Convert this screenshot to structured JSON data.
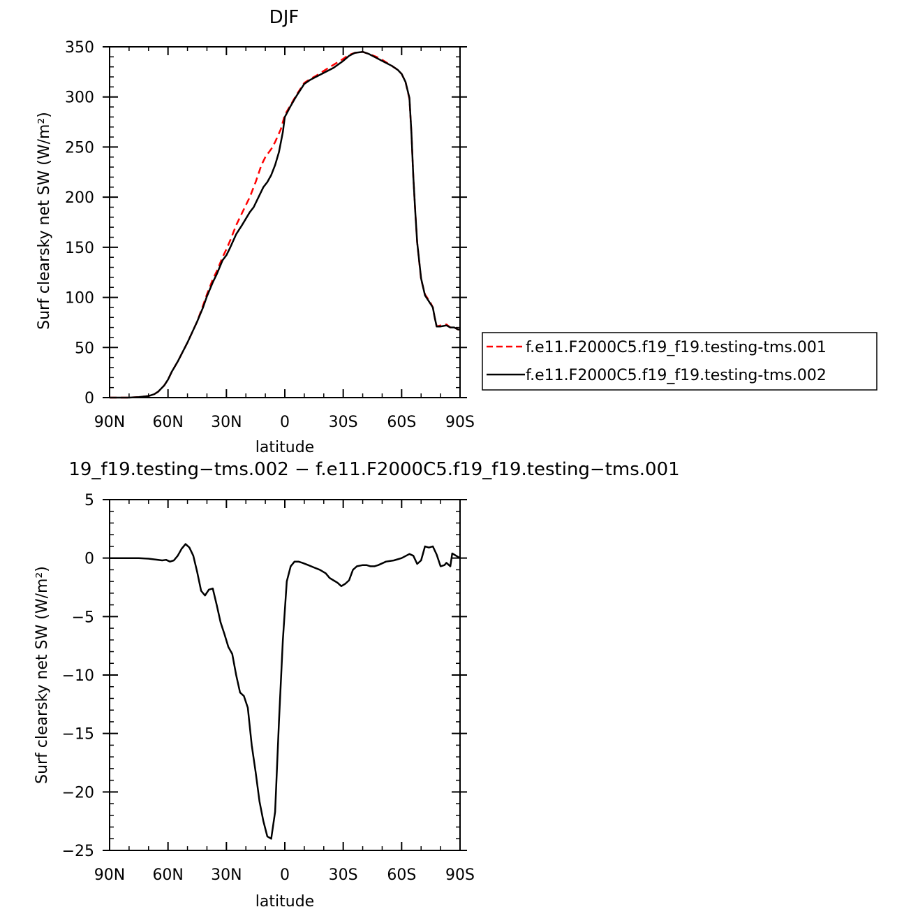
{
  "chart_data": [
    {
      "type": "line",
      "title": "DJF",
      "xlabel": "latitude",
      "ylabel": "Surf clearsky net SW (W/m²)",
      "xlim": [
        90,
        -90
      ],
      "ylim": [
        0,
        350
      ],
      "x_ticks": [
        90,
        60,
        30,
        0,
        -30,
        -60,
        -90
      ],
      "x_tick_labels": [
        "90N",
        "60N",
        "30N",
        "0",
        "30S",
        "60S",
        "90S"
      ],
      "y_ticks": [
        0,
        50,
        100,
        150,
        200,
        250,
        300,
        350
      ],
      "y_tick_labels": [
        "0",
        "50",
        "100",
        "150",
        "200",
        "250",
        "300",
        "350"
      ],
      "legend_position": "right",
      "series": [
        {
          "name": "f.e11.F2000C5.f19_f19.testing-tms.001",
          "color": "#ff0000",
          "dash": "dashed",
          "points": [
            [
              90,
              0
            ],
            [
              80,
              0
            ],
            [
              75,
              0.5
            ],
            [
              70,
              1.5
            ],
            [
              67,
              3.5
            ],
            [
              65,
              6
            ],
            [
              62,
              12
            ],
            [
              60,
              18
            ],
            [
              58,
              26
            ],
            [
              55,
              36
            ],
            [
              50,
              55
            ],
            [
              45,
              76
            ],
            [
              42,
              92
            ],
            [
              40,
              103
            ],
            [
              37,
              118
            ],
            [
              35,
              126
            ],
            [
              32,
              140
            ],
            [
              30,
              148
            ],
            [
              28,
              157
            ],
            [
              25,
              172
            ],
            [
              22,
              184
            ],
            [
              18,
              200
            ],
            [
              15,
              215
            ],
            [
              12,
              232
            ],
            [
              10,
              240
            ],
            [
              7,
              248
            ],
            [
              5,
              255
            ],
            [
              2,
              268
            ],
            [
              0,
              282
            ],
            [
              -3,
              292
            ],
            [
              -6,
              302
            ],
            [
              -10,
              314
            ],
            [
              -13,
              318
            ],
            [
              -16,
              321
            ],
            [
              -20,
              326
            ],
            [
              -25,
              332
            ],
            [
              -30,
              338
            ],
            [
              -33,
              342
            ],
            [
              -36,
              344
            ],
            [
              -40,
              345
            ],
            [
              -43,
              343
            ],
            [
              -47,
              340
            ],
            [
              -50,
              337
            ],
            [
              -55,
              331
            ],
            [
              -58,
              327
            ],
            [
              -60,
              323
            ],
            [
              -62,
              315
            ],
            [
              -64,
              298
            ],
            [
              -65,
              265
            ],
            [
              -66,
              220
            ],
            [
              -67,
              185
            ],
            [
              -68,
              155
            ],
            [
              -70,
              118
            ],
            [
              -72,
              103
            ],
            [
              -75,
              94
            ],
            [
              -76,
              90
            ],
            [
              -77,
              80
            ],
            [
              -78,
              71
            ],
            [
              -80,
              72
            ],
            [
              -83,
              73
            ],
            [
              -85,
              70
            ],
            [
              -87,
              70
            ],
            [
              -89,
              68
            ],
            [
              -90,
              68
            ]
          ]
        },
        {
          "name": "f.e11.F2000C5.f19_f19.testing-tms.002",
          "color": "#000000",
          "dash": "solid",
          "points": [
            [
              90,
              0
            ],
            [
              80,
              0
            ],
            [
              75,
              0.5
            ],
            [
              70,
              1.5
            ],
            [
              67,
              3.5
            ],
            [
              65,
              6
            ],
            [
              62,
              12
            ],
            [
              60,
              18
            ],
            [
              58,
              26
            ],
            [
              55,
              36
            ],
            [
              50,
              55
            ],
            [
              45,
              76
            ],
            [
              42,
              90
            ],
            [
              40,
              101
            ],
            [
              37,
              115
            ],
            [
              35,
              123
            ],
            [
              32,
              137
            ],
            [
              30,
              142
            ],
            [
              28,
              150
            ],
            [
              25,
              163
            ],
            [
              22,
              172
            ],
            [
              18,
              185
            ],
            [
              16,
              190
            ],
            [
              13,
              202
            ],
            [
              11,
              210
            ],
            [
              9,
              215
            ],
            [
              7,
              222
            ],
            [
              5,
              232
            ],
            [
              3,
              245
            ],
            [
              1,
              265
            ],
            [
              0,
              280
            ],
            [
              -3,
              291
            ],
            [
              -6,
              301
            ],
            [
              -10,
              313
            ],
            [
              -13,
              317
            ],
            [
              -16,
              320
            ],
            [
              -20,
              324
            ],
            [
              -25,
              329
            ],
            [
              -30,
              336
            ],
            [
              -33,
              341
            ],
            [
              -36,
              344
            ],
            [
              -40,
              345
            ],
            [
              -43,
              343
            ],
            [
              -47,
              339
            ],
            [
              -50,
              336
            ],
            [
              -55,
              331
            ],
            [
              -58,
              327
            ],
            [
              -60,
              323
            ],
            [
              -62,
              315
            ],
            [
              -64,
              299
            ],
            [
              -65,
              265
            ],
            [
              -66,
              220
            ],
            [
              -67,
              185
            ],
            [
              -68,
              155
            ],
            [
              -70,
              119
            ],
            [
              -72,
              102
            ],
            [
              -75,
              93
            ],
            [
              -76,
              90
            ],
            [
              -77,
              80
            ],
            [
              -78,
              71
            ],
            [
              -80,
              71
            ],
            [
              -83,
              72
            ],
            [
              -85,
              70
            ],
            [
              -87,
              70
            ],
            [
              -89,
              68
            ],
            [
              -90,
              68
            ]
          ]
        }
      ]
    },
    {
      "type": "line",
      "title": "19_f19.testing−tms.002 − f.e11.F2000C5.f19_f19.testing−tms.001",
      "xlabel": "latitude",
      "ylabel": "Surf clearsky net SW (W/m²)",
      "xlim": [
        90,
        -90
      ],
      "ylim": [
        -25,
        5
      ],
      "x_ticks": [
        90,
        60,
        30,
        0,
        -30,
        -60,
        -90
      ],
      "x_tick_labels": [
        "90N",
        "60N",
        "30N",
        "0",
        "30S",
        "60S",
        "90S"
      ],
      "y_ticks": [
        5,
        0,
        -5,
        -10,
        -15,
        -20,
        -25
      ],
      "y_tick_labels": [
        "5",
        "0",
        "−5",
        "−10",
        "−15",
        "−20",
        "−25"
      ],
      "series": [
        {
          "color": "#000000",
          "dash": "solid",
          "points": [
            [
              90,
              0
            ],
            [
              75,
              0
            ],
            [
              70,
              -0.05
            ],
            [
              65,
              -0.15
            ],
            [
              63,
              -0.2
            ],
            [
              61,
              -0.15
            ],
            [
              59,
              -0.3
            ],
            [
              57,
              -0.2
            ],
            [
              55,
              0.2
            ],
            [
              53,
              0.8
            ],
            [
              51,
              1.2
            ],
            [
              49,
              0.9
            ],
            [
              47,
              0.2
            ],
            [
              45,
              -1.2
            ],
            [
              43,
              -2.8
            ],
            [
              41,
              -3.2
            ],
            [
              39,
              -2.7
            ],
            [
              37,
              -2.6
            ],
            [
              35,
              -4
            ],
            [
              33,
              -5.5
            ],
            [
              31,
              -6.5
            ],
            [
              29,
              -7.6
            ],
            [
              27,
              -8.2
            ],
            [
              25,
              -10
            ],
            [
              23,
              -11.5
            ],
            [
              21,
              -11.8
            ],
            [
              19,
              -12.8
            ],
            [
              17,
              -16
            ],
            [
              15,
              -18.3
            ],
            [
              13,
              -20.8
            ],
            [
              11,
              -22.5
            ],
            [
              9,
              -23.8
            ],
            [
              7,
              -24
            ],
            [
              5,
              -21.7
            ],
            [
              3,
              -14
            ],
            [
              1,
              -7
            ],
            [
              -1,
              -2
            ],
            [
              -3,
              -0.7
            ],
            [
              -5,
              -0.3
            ],
            [
              -7,
              -0.3
            ],
            [
              -9,
              -0.4
            ],
            [
              -12,
              -0.6
            ],
            [
              -15,
              -0.8
            ],
            [
              -18,
              -1
            ],
            [
              -21,
              -1.3
            ],
            [
              -23,
              -1.7
            ],
            [
              -25,
              -1.9
            ],
            [
              -27,
              -2.1
            ],
            [
              -29,
              -2.4
            ],
            [
              -31,
              -2.2
            ],
            [
              -33,
              -1.9
            ],
            [
              -35,
              -1
            ],
            [
              -37,
              -0.7
            ],
            [
              -40,
              -0.6
            ],
            [
              -42,
              -0.6
            ],
            [
              -44,
              -0.7
            ],
            [
              -46,
              -0.7
            ],
            [
              -48,
              -0.6
            ],
            [
              -50,
              -0.45
            ],
            [
              -52,
              -0.3
            ],
            [
              -56,
              -0.2
            ],
            [
              -60,
              0
            ],
            [
              -64,
              0.35
            ],
            [
              -66,
              0.2
            ],
            [
              -68,
              -0.5
            ],
            [
              -70,
              -0.2
            ],
            [
              -72,
              1
            ],
            [
              -74,
              0.9
            ],
            [
              -76,
              1
            ],
            [
              -78,
              0.3
            ],
            [
              -80,
              -0.7
            ],
            [
              -82,
              -0.6
            ],
            [
              -83,
              -0.4
            ],
            [
              -85,
              -0.7
            ],
            [
              -86,
              0.4
            ],
            [
              -88,
              0.2
            ],
            [
              -90,
              0
            ]
          ]
        }
      ]
    }
  ]
}
